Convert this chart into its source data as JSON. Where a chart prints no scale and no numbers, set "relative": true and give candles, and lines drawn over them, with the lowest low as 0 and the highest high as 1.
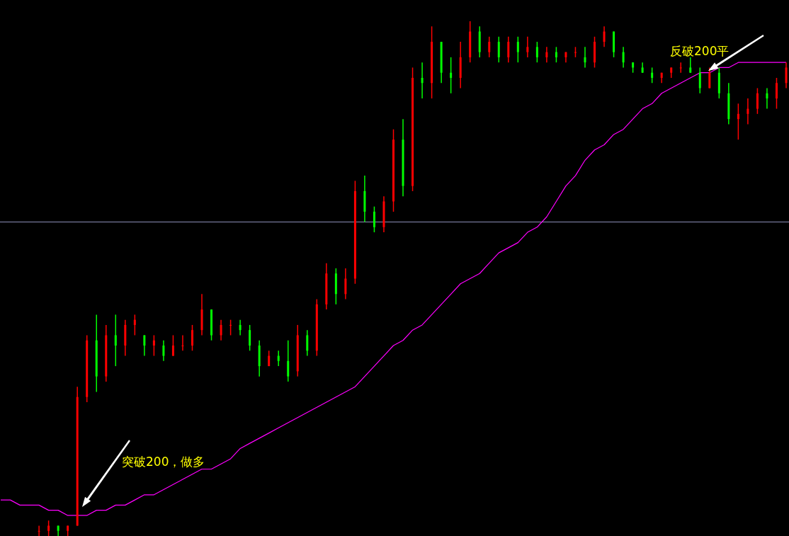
{
  "chart_data": {
    "type": "candlestick",
    "relative": true,
    "categories": [
      null,
      null,
      null,
      null,
      null,
      null,
      null,
      null,
      null,
      null,
      null,
      null,
      null,
      null,
      null,
      null,
      null,
      null,
      null,
      null,
      null,
      null,
      null,
      null,
      null,
      null,
      null,
      null,
      null,
      null,
      null,
      null,
      null,
      null,
      null,
      null,
      null,
      null,
      null,
      null,
      null,
      null,
      null,
      null,
      null,
      null,
      null,
      null,
      null,
      null,
      null,
      null,
      null,
      null,
      null,
      null,
      null,
      null,
      null,
      null,
      null,
      null,
      null,
      null,
      null,
      null,
      null,
      null,
      null,
      null,
      null,
      null,
      null,
      null,
      null,
      null,
      null,
      null,
      null,
      null,
      null,
      null,
      null
    ],
    "ohlc": [
      null,
      null,
      null,
      null,
      [
        0.01,
        0.02,
        0,
        0.01
      ],
      [
        0.01,
        0.03,
        0,
        0.02
      ],
      [
        0.02,
        0.02,
        0,
        0.01
      ],
      [
        0.01,
        0.02,
        0,
        0.02
      ],
      [
        0.02,
        0.29,
        0.02,
        0.27
      ],
      [
        0.27,
        0.39,
        0.26,
        0.38
      ],
      [
        0.38,
        0.43,
        0.28,
        0.31
      ],
      [
        0.31,
        0.41,
        0.3,
        0.39
      ],
      [
        0.39,
        0.43,
        0.33,
        0.37
      ],
      [
        0.37,
        0.42,
        0.35,
        0.41
      ],
      [
        0.41,
        0.43,
        0.39,
        0.42
      ],
      [
        0.39,
        0.39,
        0.35,
        0.37
      ],
      [
        0.37,
        0.39,
        0.35,
        0.38
      ],
      [
        0.37,
        0.38,
        0.34,
        0.35
      ],
      [
        0.35,
        0.39,
        0.35,
        0.37
      ],
      [
        0.37,
        0.39,
        0.36,
        0.37
      ],
      [
        0.37,
        0.41,
        0.36,
        0.4
      ],
      [
        0.4,
        0.47,
        0.39,
        0.44
      ],
      [
        0.44,
        0.44,
        0.38,
        0.39
      ],
      [
        0.39,
        0.42,
        0.38,
        0.41
      ],
      [
        0.41,
        0.42,
        0.39,
        0.41
      ],
      [
        0.41,
        0.42,
        0.39,
        0.4
      ],
      [
        0.4,
        0.41,
        0.36,
        0.37
      ],
      [
        0.37,
        0.38,
        0.31,
        0.33
      ],
      [
        0.33,
        0.36,
        0.33,
        0.35
      ],
      [
        0.35,
        0.36,
        0.33,
        0.34
      ],
      [
        0.34,
        0.38,
        0.3,
        0.31
      ],
      [
        0.32,
        0.41,
        0.31,
        0.39
      ],
      [
        0.39,
        0.4,
        0.35,
        0.36
      ],
      [
        0.36,
        0.46,
        0.35,
        0.45
      ],
      [
        0.45,
        0.53,
        0.44,
        0.51
      ],
      [
        0.51,
        0.52,
        0.45,
        0.47
      ],
      [
        0.47,
        0.52,
        0.46,
        0.5
      ],
      [
        0.5,
        0.69,
        0.49,
        0.67
      ],
      [
        0.67,
        0.7,
        0.61,
        0.63
      ],
      [
        0.63,
        0.64,
        0.59,
        0.6
      ],
      [
        0.6,
        0.66,
        0.59,
        0.65
      ],
      [
        0.65,
        0.79,
        0.63,
        0.77
      ],
      [
        0.77,
        0.81,
        0.66,
        0.68
      ],
      [
        0.68,
        0.91,
        0.67,
        0.89
      ],
      [
        0.89,
        0.92,
        0.85,
        0.88
      ],
      [
        0.88,
        0.99,
        0.85,
        0.96
      ],
      [
        0.96,
        0.96,
        0.88,
        0.9
      ],
      [
        0.9,
        0.93,
        0.86,
        0.89
      ],
      [
        0.89,
        0.96,
        0.87,
        0.93
      ],
      [
        0.93,
        1,
        0.92,
        0.98
      ],
      [
        0.98,
        0.99,
        0.93,
        0.94
      ],
      [
        0.94,
        0.97,
        0.93,
        0.96
      ],
      [
        0.96,
        0.97,
        0.92,
        0.93
      ],
      [
        0.93,
        0.97,
        0.92,
        0.96
      ],
      [
        0.96,
        0.97,
        0.92,
        0.94
      ],
      [
        0.94,
        0.97,
        0.93,
        0.95
      ],
      [
        0.95,
        0.96,
        0.92,
        0.93
      ],
      [
        0.93,
        0.95,
        0.92,
        0.94
      ],
      [
        0.94,
        0.95,
        0.92,
        0.93
      ],
      [
        0.93,
        0.94,
        0.92,
        0.94
      ],
      [
        0.94,
        0.95,
        0.93,
        0.94
      ],
      [
        0.93,
        0.95,
        0.91,
        0.92
      ],
      [
        0.92,
        0.97,
        0.91,
        0.96
      ],
      [
        0.96,
        0.99,
        0.95,
        0.98
      ],
      [
        0.98,
        0.98,
        0.93,
        0.94
      ],
      [
        0.94,
        0.95,
        0.91,
        0.92
      ],
      [
        0.92,
        0.92,
        0.9,
        0.91
      ],
      [
        0.91,
        0.92,
        0.9,
        0.9
      ],
      [
        0.9,
        0.91,
        0.88,
        0.89
      ],
      [
        0.89,
        0.9,
        0.88,
        0.9
      ],
      [
        0.9,
        0.91,
        0.89,
        0.91
      ],
      [
        0.91,
        0.92,
        0.9,
        0.91
      ],
      [
        0.91,
        0.93,
        0.9,
        0.9
      ],
      [
        0.9,
        0.91,
        0.86,
        0.87
      ],
      [
        0.87,
        0.91,
        0.87,
        0.9
      ],
      [
        0.9,
        0.91,
        0.85,
        0.86
      ],
      [
        0.86,
        0.88,
        0.8,
        0.81
      ],
      [
        0.81,
        0.84,
        0.77,
        0.82
      ],
      [
        0.82,
        0.85,
        0.8,
        0.83
      ],
      [
        0.83,
        0.87,
        0.82,
        0.86
      ],
      [
        0.86,
        0.87,
        0.83,
        0.85
      ],
      [
        0.85,
        0.89,
        0.83,
        0.88
      ],
      [
        0.88,
        0.92,
        0.87,
        0.91
      ]
    ],
    "colors": [
      null,
      null,
      null,
      null,
      "#ff0000",
      "#ff0000",
      "#00ff00",
      "#ff0000",
      "#ff0000",
      "#ff0000",
      "#00ff00",
      "#ff0000",
      "#00ff00",
      "#ff0000",
      "#ff0000",
      "#00ff00",
      "#ff0000",
      "#00ff00",
      "#ff0000",
      "#ff0000",
      "#ff0000",
      "#ff0000",
      "#00ff00",
      "#ff0000",
      "#ff0000",
      "#00ff00",
      "#00ff00",
      "#00ff00",
      "#ff0000",
      "#00ff00",
      "#00ff00",
      "#ff0000",
      "#00ff00",
      "#ff0000",
      "#ff0000",
      "#00ff00",
      "#ff0000",
      "#ff0000",
      "#00ff00",
      "#00ff00",
      "#ff0000",
      "#ff0000",
      "#00ff00",
      "#ff0000",
      "#00ff00",
      "#ff0000",
      "#00ff00",
      "#00ff00",
      "#ff0000",
      "#ff0000",
      "#00ff00",
      "#ff0000",
      "#00ff00",
      "#ff0000",
      "#00ff00",
      "#ff0000",
      "#00ff00",
      "#ff0000",
      "#00ff00",
      "#ff0000",
      "#ff0000",
      "#00ff00",
      "#ff0000",
      "#ff0000",
      "#00ff00",
      "#00ff00",
      "#00ff00",
      "#00ff00",
      "#00ff00",
      "#ff0000",
      "#ff0000",
      "#ff0000",
      "#00ff00",
      "#00ff00",
      "#ff0000",
      "#00ff00",
      "#00ff00",
      "#ff0000",
      "#ff0000",
      "#ff0000",
      "#00ff00",
      "#ff0000",
      "#ff0000"
    ],
    "series": [
      {
        "type": "line",
        "color": "#ff00ff",
        "values": [
          0.07,
          0.07,
          0.06,
          0.06,
          0.06,
          0.05,
          0.05,
          0.04,
          0.04,
          0.04,
          0.05,
          0.05,
          0.06,
          0.06,
          0.07,
          0.08,
          0.08,
          0.09,
          0.1,
          0.11,
          0.12,
          0.13,
          0.13,
          0.14,
          0.15,
          0.17,
          0.18,
          0.19,
          0.2,
          0.21,
          0.22,
          0.23,
          0.24,
          0.25,
          0.26,
          0.27,
          0.28,
          0.29,
          0.31,
          0.33,
          0.35,
          0.37,
          0.38,
          0.4,
          0.41,
          0.43,
          0.45,
          0.47,
          0.49,
          0.5,
          0.51,
          0.53,
          0.55,
          0.56,
          0.57,
          0.59,
          0.6,
          0.62,
          0.65,
          0.68,
          0.7,
          0.73,
          0.75,
          0.76,
          0.78,
          0.79,
          0.81,
          0.83,
          0.84,
          0.86,
          0.87,
          0.88,
          0.89,
          0.9,
          0.9,
          0.91,
          0.91,
          0.92,
          0.92,
          0.92,
          0.92,
          0.92,
          0.92
        ]
      }
    ],
    "ref_lines": [
      {
        "axis": "y",
        "value": 0.61,
        "color": "#8c90b8"
      }
    ],
    "annotations": [
      "突破200，做多",
      "反破200平"
    ]
  }
}
